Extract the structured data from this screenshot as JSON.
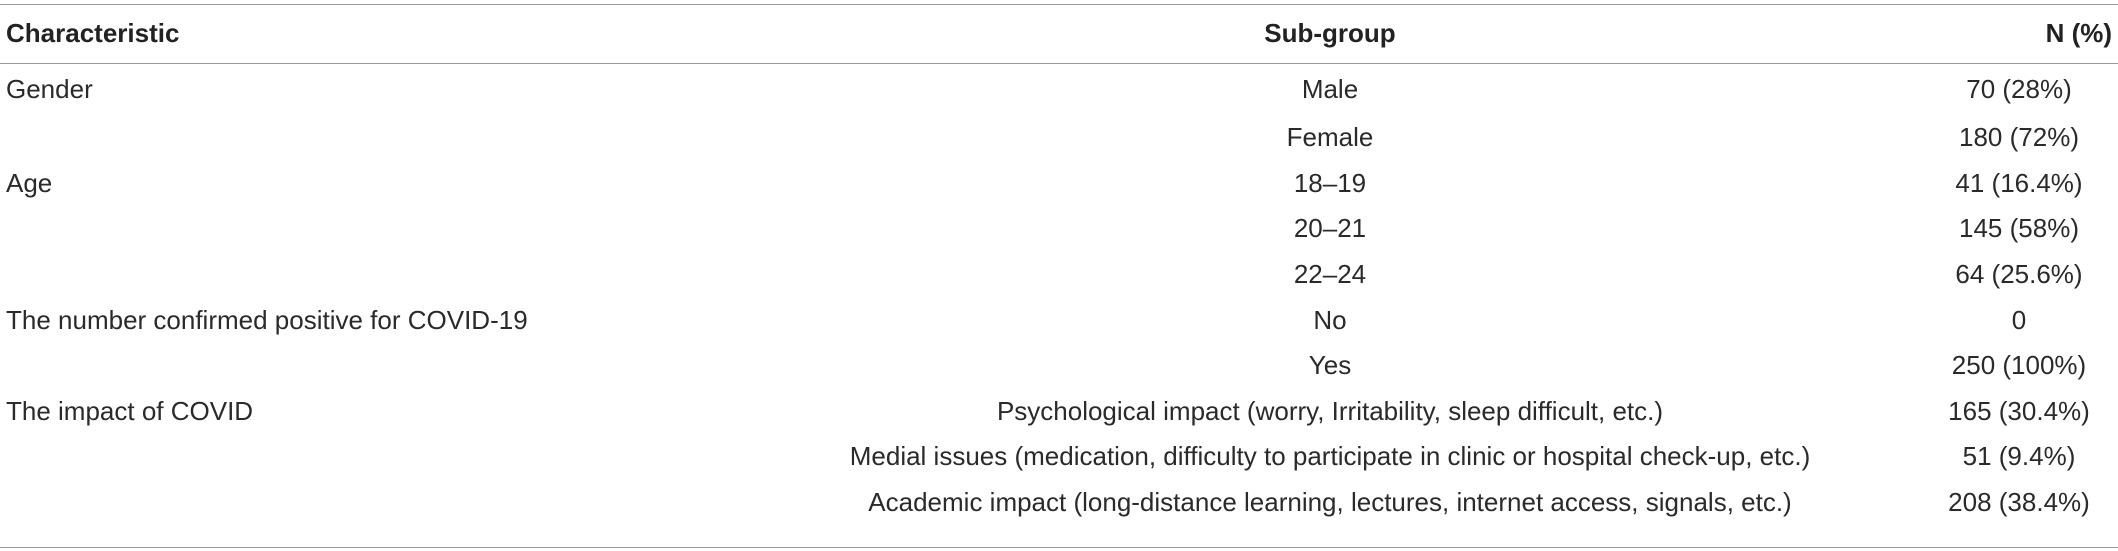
{
  "table": {
    "headers": {
      "characteristic": "Characteristic",
      "subgroup": "Sub-group",
      "n": "N (%)"
    },
    "rows": [
      {
        "characteristic": "Gender",
        "subgroup": "Male",
        "n": "70 (28%)"
      },
      {
        "characteristic": "",
        "subgroup": "Female",
        "n": "180 (72%)"
      },
      {
        "characteristic": "Age",
        "subgroup": "18–19",
        "n": "41 (16.4%)"
      },
      {
        "characteristic": "",
        "subgroup": "20–21",
        "n": "145 (58%)"
      },
      {
        "characteristic": "",
        "subgroup": "22–24",
        "n": "64 (25.6%)"
      },
      {
        "characteristic": "The number confirmed positive for COVID-19",
        "subgroup": "No",
        "n": "0"
      },
      {
        "characteristic": "",
        "subgroup": "Yes",
        "n": "250 (100%)"
      },
      {
        "characteristic": "The impact of COVID",
        "subgroup": "Psychological impact (worry, Irritability, sleep difficult, etc.)",
        "n": "165 (30.4%)"
      },
      {
        "characteristic": "",
        "subgroup": "Medial issues (medication, difficulty to participate in clinic or hospital check-up, etc.)",
        "n": "51 (9.4%)"
      },
      {
        "characteristic": "",
        "subgroup": "Academic impact (long-distance learning, lectures, internet access, signals, etc.)",
        "n": "208 (38.4%)"
      }
    ]
  }
}
